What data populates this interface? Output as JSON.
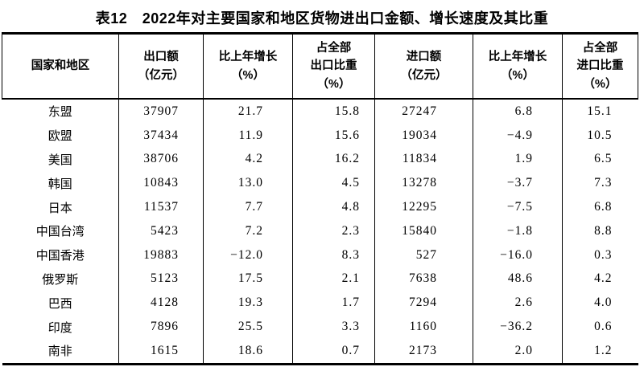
{
  "title": "表12　2022年对主要国家和地区货物进出口金额、增长速度及其比重",
  "colors": {
    "background": "#ffffff",
    "text": "#000000",
    "rule": "#000000"
  },
  "table": {
    "columns": [
      {
        "key": "region",
        "label_lines": [
          "国家和地区"
        ]
      },
      {
        "key": "export_value",
        "label_lines": [
          "出口额",
          "（亿元）"
        ]
      },
      {
        "key": "export_growth",
        "label_lines": [
          "比上年增长",
          "（%）"
        ]
      },
      {
        "key": "export_share",
        "label_lines": [
          "占全部",
          "出口比重",
          "（%）"
        ]
      },
      {
        "key": "import_value",
        "label_lines": [
          "进口额",
          "（亿元）"
        ]
      },
      {
        "key": "import_growth",
        "label_lines": [
          "比上年增长",
          "（%）"
        ]
      },
      {
        "key": "import_share",
        "label_lines": [
          "占全部",
          "进口比重",
          "（%）"
        ]
      }
    ],
    "rows": [
      {
        "region": "东盟",
        "values": [
          "37907",
          "21.7",
          "15.8",
          "27247",
          "6.8",
          "15.1"
        ]
      },
      {
        "region": "欧盟",
        "values": [
          "37434",
          "11.9",
          "15.6",
          "19034",
          "−4.9",
          "10.5"
        ]
      },
      {
        "region": "美国",
        "values": [
          "38706",
          "4.2",
          "16.2",
          "11834",
          "1.9",
          "6.5"
        ]
      },
      {
        "region": "韩国",
        "values": [
          "10843",
          "13.0",
          "4.5",
          "13278",
          "−3.7",
          "7.3"
        ]
      },
      {
        "region": "日本",
        "values": [
          "11537",
          "7.7",
          "4.8",
          "12295",
          "−7.5",
          "6.8"
        ]
      },
      {
        "region": "中国台湾",
        "values": [
          "5423",
          "7.2",
          "2.3",
          "15840",
          "−1.8",
          "8.8"
        ]
      },
      {
        "region": "中国香港",
        "values": [
          "19883",
          "−12.0",
          "8.3",
          "527",
          "−16.0",
          "0.3"
        ]
      },
      {
        "region": "俄罗斯",
        "values": [
          "5123",
          "17.5",
          "2.1",
          "7638",
          "48.6",
          "4.2"
        ]
      },
      {
        "region": "巴西",
        "values": [
          "4128",
          "19.3",
          "1.7",
          "7294",
          "2.6",
          "4.0"
        ]
      },
      {
        "region": "印度",
        "values": [
          "7896",
          "25.5",
          "3.3",
          "1160",
          "−36.2",
          "0.6"
        ]
      },
      {
        "region": "南非",
        "values": [
          "1615",
          "18.6",
          "0.7",
          "2173",
          "2.0",
          "1.2"
        ]
      }
    ]
  }
}
